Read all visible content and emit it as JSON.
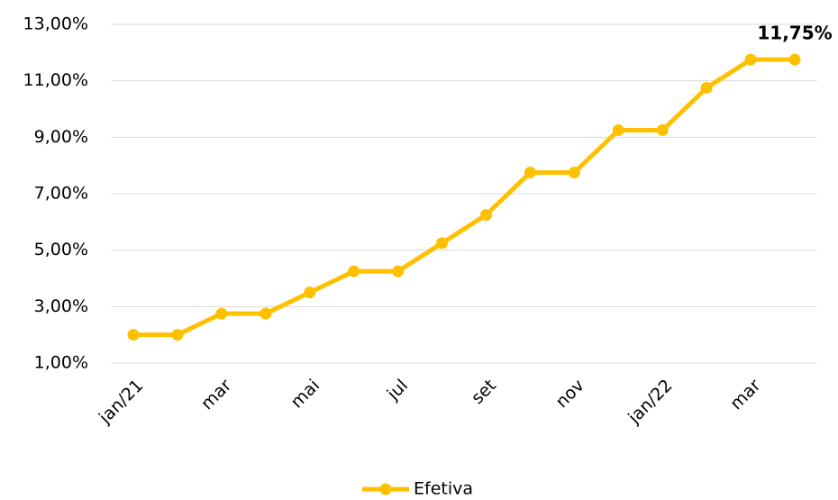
{
  "chart_data": {
    "type": "line",
    "categories": [
      "jan/21",
      null,
      "mar",
      null,
      "mai",
      null,
      "jul",
      null,
      "set",
      null,
      "nov",
      null,
      "jan/22",
      null,
      "mar",
      null
    ],
    "series": [
      {
        "name": "Efetiva",
        "color": "#FFC000",
        "values": [
          2,
          2,
          2.75,
          2.75,
          3.5,
          4.25,
          4.25,
          5.25,
          6.25,
          7.75,
          7.75,
          9.25,
          9.25,
          10.75,
          11.75,
          11.75
        ],
        "value_labels": [
          null,
          null,
          null,
          null,
          null,
          null,
          null,
          null,
          null,
          null,
          null,
          null,
          null,
          null,
          null,
          "11,75%"
        ]
      }
    ],
    "ylim": [
      1,
      13
    ],
    "yticks": [
      {
        "value": 1,
        "label": "1,00%"
      },
      {
        "value": 3,
        "label": "3,00%"
      },
      {
        "value": 5,
        "label": "5,00%"
      },
      {
        "value": 7,
        "label": "7,00%"
      },
      {
        "value": 9,
        "label": "9,00%"
      },
      {
        "value": 11,
        "label": "11,00%"
      },
      {
        "value": 13,
        "label": "13,00%"
      }
    ],
    "grid": true,
    "legend": "bottom"
  }
}
